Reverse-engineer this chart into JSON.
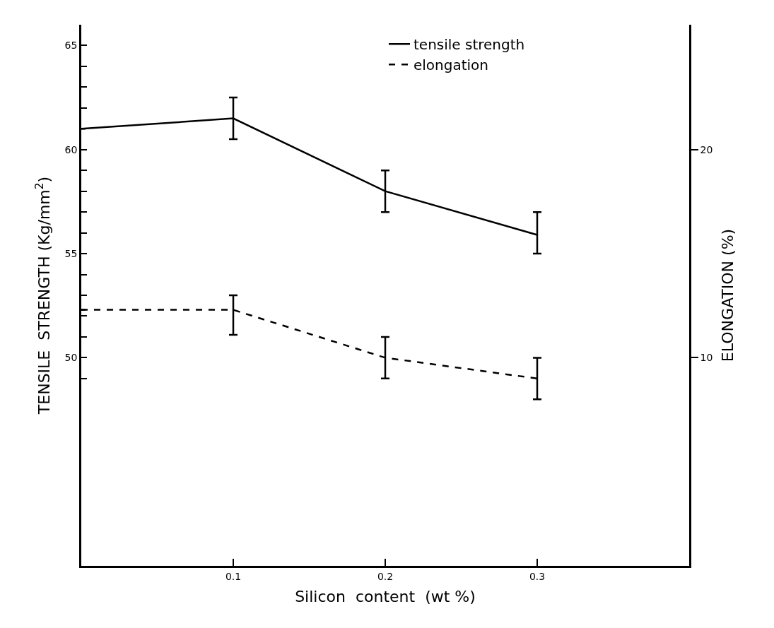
{
  "chart_data": {
    "type": "line",
    "xlabel": "Silicon  content  (wt %)",
    "ylabel": "TENSILE  STRENGTH (Kg/mm$^{2}$)",
    "y2label": "ELONGATION (%)",
    "x": [
      0,
      0.1,
      0.2,
      0.3
    ],
    "series": [
      {
        "name": "tensile strength",
        "color": "#000000",
        "line_style": "solid",
        "values": [
          61.0,
          61.5,
          58.0,
          55.9
        ],
        "errors": [
          null,
          [
            60.5,
            62.5
          ],
          [
            57.0,
            59.0
          ],
          [
            55.0,
            57.0
          ]
        ]
      },
      {
        "name": "elongation",
        "color": "#000000",
        "line_style": "dashed",
        "axis": "y2",
        "values": [
          12.3,
          12.3,
          10.0,
          9.0
        ],
        "errors": [
          null,
          [
            11.1,
            13.0
          ],
          [
            9.0,
            11.0
          ],
          [
            8.0,
            10.0
          ]
        ]
      }
    ],
    "xlim": [
      0,
      0.4
    ],
    "xticks": [
      0.1,
      0.2,
      0.3
    ],
    "ylim": [
      40,
      66
    ],
    "yticks": [
      {
        "value": 49,
        "label": null
      },
      50,
      {
        "value": 51,
        "label": null
      },
      {
        "value": 52,
        "label": null
      },
      {
        "value": 53,
        "label": null
      },
      {
        "value": 54,
        "label": null
      },
      55,
      {
        "value": 56,
        "label": null
      },
      {
        "value": 57,
        "label": null
      },
      {
        "value": 58,
        "label": null
      },
      {
        "value": 59,
        "label": null
      },
      60,
      {
        "value": 61,
        "label": null
      },
      {
        "value": 62,
        "label": null
      },
      {
        "value": 63,
        "label": null
      },
      {
        "value": 64,
        "label": null
      },
      65
    ],
    "y2lim": [
      0,
      26
    ],
    "y2ticks": [
      10,
      20
    ],
    "legend": "top right",
    "marker": "none"
  }
}
